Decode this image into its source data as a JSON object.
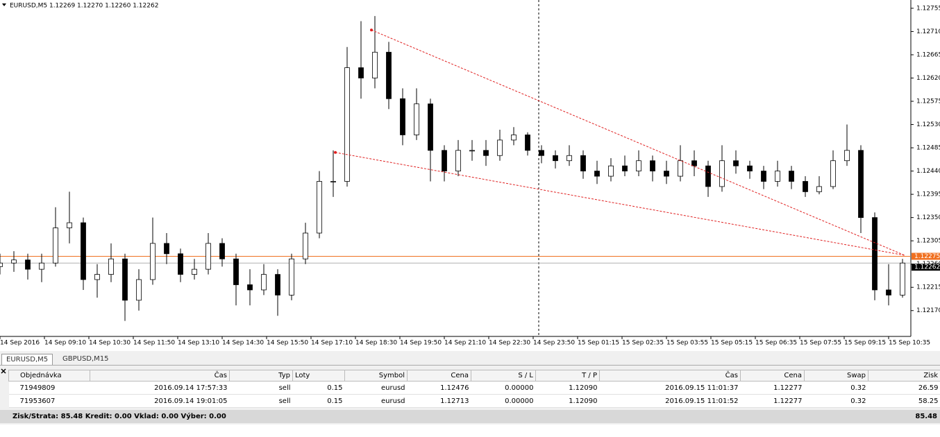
{
  "chart_data": {
    "type": "candlestick",
    "title": "EURUSD,M5  1.12269 1.12270 1.12260 1.12262",
    "x": [
      0,
      5,
      10,
      15,
      20,
      25,
      30,
      35,
      40,
      45,
      50,
      55,
      60,
      65,
      70,
      75,
      80,
      85,
      90,
      95,
      100,
      105,
      110,
      115,
      120,
      125,
      130,
      135,
      140,
      145,
      150,
      155,
      160,
      165,
      170,
      175,
      180,
      185,
      190,
      195,
      200,
      205,
      210,
      215,
      220,
      225,
      230,
      235,
      240,
      245,
      250,
      255,
      260,
      265,
      270,
      275,
      280,
      285,
      290,
      295,
      300,
      305,
      310,
      315,
      320,
      325
    ],
    "open": [
      1.12255,
      1.12262,
      1.12268,
      1.1225,
      1.12262,
      1.1233,
      1.1234,
      1.1223,
      1.1224,
      1.1227,
      1.1219,
      1.1223,
      1.123,
      1.1228,
      1.1224,
      1.1225,
      1.123,
      1.1227,
      1.1222,
      1.1221,
      1.1224,
      1.122,
      1.1227,
      1.1232,
      1.1242,
      1.1242,
      1.1264,
      1.1262,
      1.1267,
      1.1258,
      1.1251,
      1.1257,
      1.1248,
      1.1244,
      1.1248,
      1.1248,
      1.1247,
      1.125,
      1.1251,
      1.1248,
      1.1247,
      1.1246,
      1.1247,
      1.1244,
      1.1243,
      1.1245,
      1.1244,
      1.1246,
      1.1244,
      1.1243,
      1.1246,
      1.1245,
      1.1241,
      1.1246,
      1.1245,
      1.1244,
      1.1242,
      1.1244,
      1.1242,
      1.124,
      1.1241,
      1.1246,
      1.1248,
      1.1235,
      1.1221,
      1.122
    ],
    "high": [
      1.1228,
      1.12285,
      1.1228,
      1.1228,
      1.1237,
      1.124,
      1.1235,
      1.1226,
      1.123,
      1.1228,
      1.1225,
      1.1235,
      1.1232,
      1.1229,
      1.1227,
      1.1232,
      1.1231,
      1.1228,
      1.1225,
      1.1226,
      1.1225,
      1.1228,
      1.1234,
      1.1244,
      1.1248,
      1.1268,
      1.1273,
      1.1274,
      1.1269,
      1.126,
      1.126,
      1.1258,
      1.1249,
      1.125,
      1.125,
      1.125,
      1.1252,
      1.12525,
      1.12515,
      1.1249,
      1.1248,
      1.1249,
      1.1248,
      1.1246,
      1.12465,
      1.1247,
      1.1248,
      1.1247,
      1.1246,
      1.1249,
      1.1248,
      1.1246,
      1.1249,
      1.1248,
      1.1246,
      1.1245,
      1.1246,
      1.1245,
      1.1243,
      1.1243,
      1.1248,
      1.1253,
      1.1249,
      1.1236,
      1.1226,
      1.1227
    ],
    "low": [
      1.1224,
      1.12245,
      1.1223,
      1.12225,
      1.12255,
      1.123,
      1.1221,
      1.12195,
      1.12225,
      1.1215,
      1.1217,
      1.1222,
      1.1226,
      1.12225,
      1.1223,
      1.1224,
      1.12255,
      1.1218,
      1.1218,
      1.122,
      1.1216,
      1.1219,
      1.1226,
      1.1231,
      1.1239,
      1.1241,
      1.1258,
      1.126,
      1.1256,
      1.1249,
      1.125,
      1.1242,
      1.1242,
      1.1243,
      1.1246,
      1.1245,
      1.1246,
      1.1249,
      1.1247,
      1.12455,
      1.12445,
      1.1245,
      1.12425,
      1.12415,
      1.1242,
      1.1243,
      1.1243,
      1.1242,
      1.12415,
      1.1242,
      1.1243,
      1.1239,
      1.124,
      1.12435,
      1.12425,
      1.12405,
      1.1241,
      1.12405,
      1.1239,
      1.12395,
      1.12405,
      1.1245,
      1.1232,
      1.1219,
      1.1218,
      1.12195
    ],
    "close": [
      1.12262,
      1.12268,
      1.1225,
      1.12262,
      1.1233,
      1.1234,
      1.1223,
      1.1224,
      1.1227,
      1.1219,
      1.1223,
      1.123,
      1.1228,
      1.1224,
      1.1225,
      1.123,
      1.1227,
      1.1222,
      1.1221,
      1.1224,
      1.122,
      1.1227,
      1.1232,
      1.1242,
      1.1242,
      1.1264,
      1.1262,
      1.1267,
      1.1258,
      1.1251,
      1.1257,
      1.1248,
      1.1244,
      1.1248,
      1.1248,
      1.1247,
      1.125,
      1.1251,
      1.1248,
      1.1247,
      1.1246,
      1.1247,
      1.1244,
      1.1243,
      1.1245,
      1.1244,
      1.1246,
      1.1244,
      1.1243,
      1.1246,
      1.1245,
      1.1241,
      1.1246,
      1.1245,
      1.1244,
      1.1242,
      1.1244,
      1.1242,
      1.124,
      1.1241,
      1.1246,
      1.1248,
      1.1235,
      1.1221,
      1.122,
      1.12262
    ],
    "bull_color": "#ffffff",
    "bear_color": "#000000",
    "wick_color": "#000000",
    "xlim": [
      0,
      328
    ],
    "xticks": [
      {
        "value": 0,
        "label": "14 Sep 2016"
      },
      {
        "value": 16,
        "label": "14 Sep 09:10"
      },
      {
        "value": 32,
        "label": "14 Sep 10:30"
      },
      {
        "value": 48,
        "label": "14 Sep 11:50"
      },
      {
        "value": 64,
        "label": "14 Sep 13:10"
      },
      {
        "value": 80,
        "label": "14 Sep 14:30"
      },
      {
        "value": 96,
        "label": "14 Sep 15:50"
      },
      {
        "value": 112,
        "label": "14 Sep 17:10"
      },
      {
        "value": 128,
        "label": "14 Sep 18:30"
      },
      {
        "value": 144,
        "label": "14 Sep 19:50"
      },
      {
        "value": 160,
        "label": "14 Sep 21:10"
      },
      {
        "value": 176,
        "label": "14 Sep 22:30"
      },
      {
        "value": 192,
        "label": "14 Sep 23:50"
      },
      {
        "value": 208,
        "label": "15 Sep 01:15"
      },
      {
        "value": 224,
        "label": "15 Sep 02:35"
      },
      {
        "value": 240,
        "label": "15 Sep 03:55"
      },
      {
        "value": 256,
        "label": "15 Sep 05:15"
      },
      {
        "value": 272,
        "label": "15 Sep 06:35"
      },
      {
        "value": 288,
        "label": "15 Sep 07:55"
      },
      {
        "value": 304,
        "label": "15 Sep 09:15"
      },
      {
        "value": 320,
        "label": "15 Sep 10:35"
      }
    ],
    "ylim": [
      1.1212,
      1.12771
    ],
    "yticks": [
      1.12755,
      {
        "value": 1.1271,
        "label": "1.12710"
      },
      1.12665,
      {
        "value": 1.1262,
        "label": "1.12620"
      },
      1.12575,
      {
        "value": 1.1253,
        "label": "1.12530"
      },
      1.12485,
      {
        "value": 1.1244,
        "label": "1.12440"
      },
      1.12395,
      {
        "value": 1.1235,
        "label": "1.12350"
      },
      1.12305,
      {
        "value": 1.1226,
        "label": "1.12260"
      },
      1.12215,
      {
        "value": 1.1217,
        "label": "1.12170"
      }
    ],
    "price_lines": [
      {
        "value": 1.12275,
        "color": "#f07020"
      },
      {
        "value": 1.12262,
        "color": "#000000"
      }
    ],
    "period_separator": 194,
    "trades": [
      {
        "x": [
          120.75,
          325.75
        ],
        "y": [
          1.12476,
          1.12277
        ]
      },
      {
        "x": [
          133.75,
          325.75
        ],
        "y": [
          1.12713,
          1.12277
        ]
      }
    ],
    "trade_color": "#e02020"
  },
  "tabs": [
    "EURUSD,M5",
    "GBPUSD,M15"
  ],
  "table": {
    "headers": [
      "Objednávka",
      "Čas",
      "Typ",
      "Loty",
      "Symbol",
      "Cena",
      "S / L",
      "T / P",
      "Čas",
      "Cena",
      "Swap",
      "Zisk"
    ],
    "rows": [
      [
        "71949809",
        "2016.09.14 17:57:33",
        "sell",
        "0.15",
        "eurusd",
        "1.12476",
        "0.00000",
        "1.12090",
        "2016.09.15 11:01:37",
        "1.12277",
        "0.32",
        "26.59"
      ],
      [
        "71953607",
        "2016.09.14 19:01:05",
        "sell",
        "0.15",
        "eurusd",
        "1.12713",
        "0.00000",
        "1.12090",
        "2016.09.15 11:01:52",
        "1.12277",
        "0.32",
        "58.25"
      ]
    ]
  },
  "footer": {
    "summary": "Zisk/Strata: 85.48  Kredit: 0.00  Vklad: 0.00  Výber: 0.00",
    "total": "85.48"
  }
}
